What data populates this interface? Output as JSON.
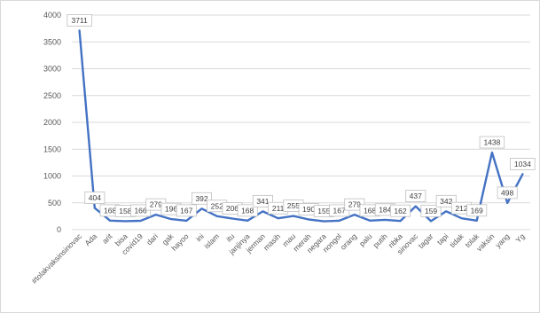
{
  "chart_data": {
    "type": "line",
    "title": "",
    "xlabel": "",
    "ylabel": "",
    "ylim": [
      0,
      4000
    ],
    "yticks": [
      0,
      500,
      1000,
      1500,
      2000,
      2500,
      3000,
      3500,
      4000
    ],
    "grid": true,
    "legend": "none",
    "series_color": "#4472c4",
    "categories": [
      "#tolakvaksinsinovac",
      "Ada",
      "arit",
      "bisa",
      "covid19",
      "dari",
      "gak",
      "hayoo",
      "ini",
      "islam",
      "itu",
      "janjinya",
      "jerman",
      "masih",
      "mau",
      "merah",
      "negara",
      "nongol",
      "orang",
      "palu",
      "putih",
      "ribka",
      "sinovac",
      "tagar",
      "tapi",
      "tidak",
      "tolak",
      "vaksin",
      "yang",
      "Yg"
    ],
    "series": [
      {
        "values": [
          3711,
          404,
          168,
          158,
          166,
          279,
          196,
          167,
          392,
          252,
          206,
          168,
          341,
          211,
          255,
          190,
          155,
          167,
          279,
          168,
          184,
          162,
          437,
          159,
          342,
          212,
          169,
          1438,
          498,
          1034
        ],
        "labels": [
          "3711",
          "404",
          "168",
          "158",
          "166",
          "279",
          "196",
          "167",
          "392",
          "252",
          "206",
          "168",
          "341",
          "211",
          "255",
          "190",
          "155",
          "167",
          "279",
          "168",
          "184",
          "162",
          "437",
          "159",
          "342",
          "212",
          "169",
          "1438",
          "498",
          "1034"
        ]
      }
    ]
  }
}
